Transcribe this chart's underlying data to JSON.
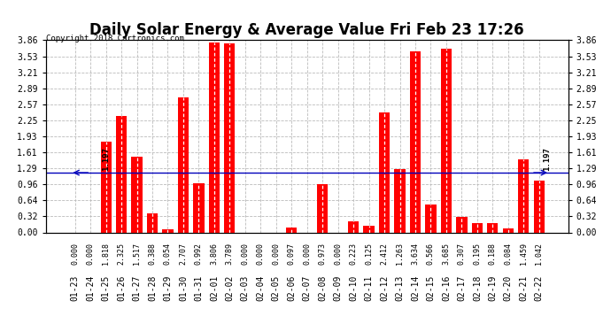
{
  "title": "Daily Solar Energy & Average Value Fri Feb 23 17:26",
  "copyright": "Copyright 2018 Cartronics.com",
  "categories": [
    "01-23",
    "01-24",
    "01-25",
    "01-26",
    "01-27",
    "01-28",
    "01-29",
    "01-30",
    "01-31",
    "02-01",
    "02-02",
    "02-03",
    "02-04",
    "02-05",
    "02-06",
    "02-07",
    "02-08",
    "02-09",
    "02-10",
    "02-11",
    "02-12",
    "02-13",
    "02-14",
    "02-15",
    "02-16",
    "02-17",
    "02-18",
    "02-19",
    "02-20",
    "02-21",
    "02-22"
  ],
  "values": [
    0.0,
    0.0,
    1.818,
    2.325,
    1.517,
    0.388,
    0.054,
    2.707,
    0.992,
    3.806,
    3.789,
    0.0,
    0.0,
    0.0,
    0.097,
    0.0,
    0.973,
    0.0,
    0.223,
    0.125,
    2.412,
    1.263,
    3.634,
    0.566,
    3.685,
    0.307,
    0.195,
    0.188,
    0.084,
    1.459,
    1.042
  ],
  "average": 1.197,
  "ylim": [
    0.0,
    3.86
  ],
  "yticks": [
    0.0,
    0.32,
    0.64,
    0.96,
    1.29,
    1.61,
    1.93,
    2.25,
    2.57,
    2.89,
    3.21,
    3.53,
    3.86
  ],
  "bar_color": "#ff0000",
  "avg_line_color": "#0000bb",
  "background_color": "#ffffff",
  "grid_color": "#bbbbbb",
  "title_fontsize": 12,
  "tick_fontsize": 7,
  "legend_avg_color": "#000099",
  "legend_daily_color": "#ff0000"
}
